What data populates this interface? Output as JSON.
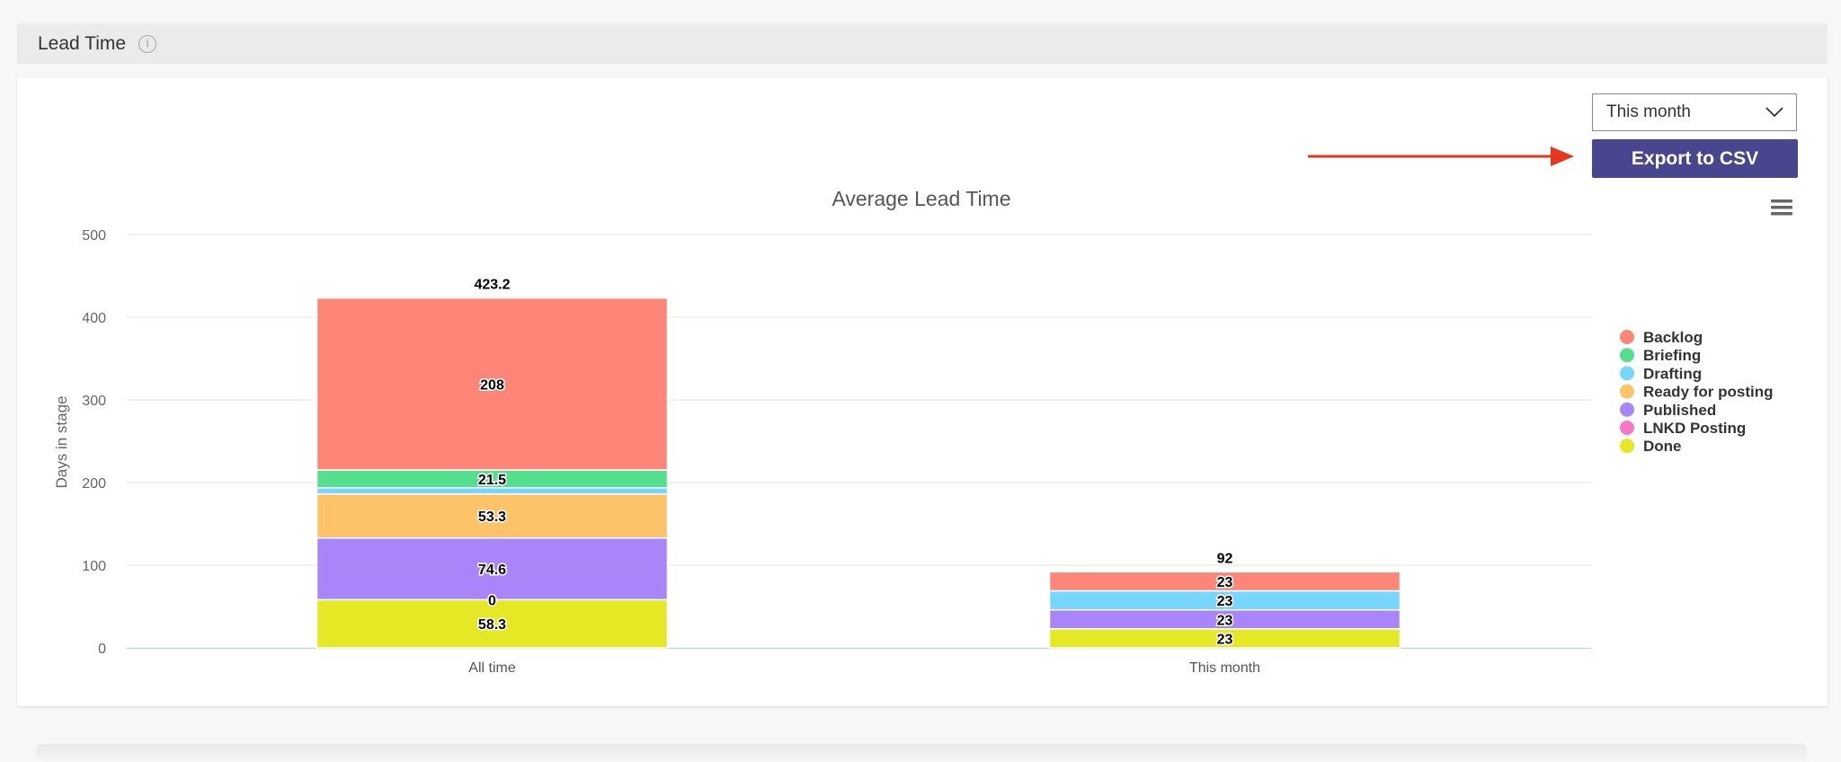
{
  "header": {
    "title": "Lead Time",
    "info_icon": "info-icon"
  },
  "controls": {
    "period_select": {
      "value": "This month",
      "icon": "chevron-down-icon"
    },
    "export_label": "Export to CSV",
    "annotation_color": "#e8351c",
    "menu_icon": "hamburger-menu-icon"
  },
  "chart_data": {
    "type": "bar",
    "stacked": true,
    "title": "Average Lead Time",
    "xlabel": "",
    "ylabel": "Days in stage",
    "ylim": [
      0,
      500
    ],
    "yticks": [
      0,
      100,
      200,
      300,
      400,
      500
    ],
    "grid": true,
    "legend_position": "right",
    "categories": [
      "All time",
      "This month"
    ],
    "series": [
      {
        "name": "Done",
        "color": "#e4e825",
        "values": [
          58.3,
          23
        ]
      },
      {
        "name": "LNKD Posting",
        "color": "#f577c6",
        "values": [
          0,
          0
        ]
      },
      {
        "name": "Published",
        "color": "#a886f9",
        "values": [
          74.6,
          23
        ]
      },
      {
        "name": "Ready for posting",
        "color": "#fec368",
        "values": [
          53.3,
          0
        ]
      },
      {
        "name": "Drafting",
        "color": "#76d6fb",
        "values": [
          7.5,
          23
        ]
      },
      {
        "name": "Briefing",
        "color": "#55de8e",
        "values": [
          21.5,
          0
        ]
      },
      {
        "name": "Backlog",
        "color": "#fe8679",
        "values": [
          208,
          23
        ]
      }
    ],
    "legend_order": [
      "Backlog",
      "Briefing",
      "Drafting",
      "Ready for posting",
      "Published",
      "LNKD Posting",
      "Done"
    ],
    "data_labels": [
      [
        {
          "series": "Done",
          "text": "58.3"
        },
        {
          "series": "LNKD Posting",
          "text": "0"
        },
        {
          "series": "Published",
          "text": "74.6"
        },
        {
          "series": "Ready for posting",
          "text": "53.3"
        },
        {
          "series": "Briefing",
          "text": "21.5"
        },
        {
          "series": "Backlog",
          "text": "208"
        }
      ],
      [
        {
          "series": "Done",
          "text": "23"
        },
        {
          "series": "Published",
          "text": "23"
        },
        {
          "series": "Drafting",
          "text": "23"
        },
        {
          "series": "Backlog",
          "text": "23"
        }
      ]
    ],
    "totals": [
      "423.2",
      "92"
    ]
  }
}
